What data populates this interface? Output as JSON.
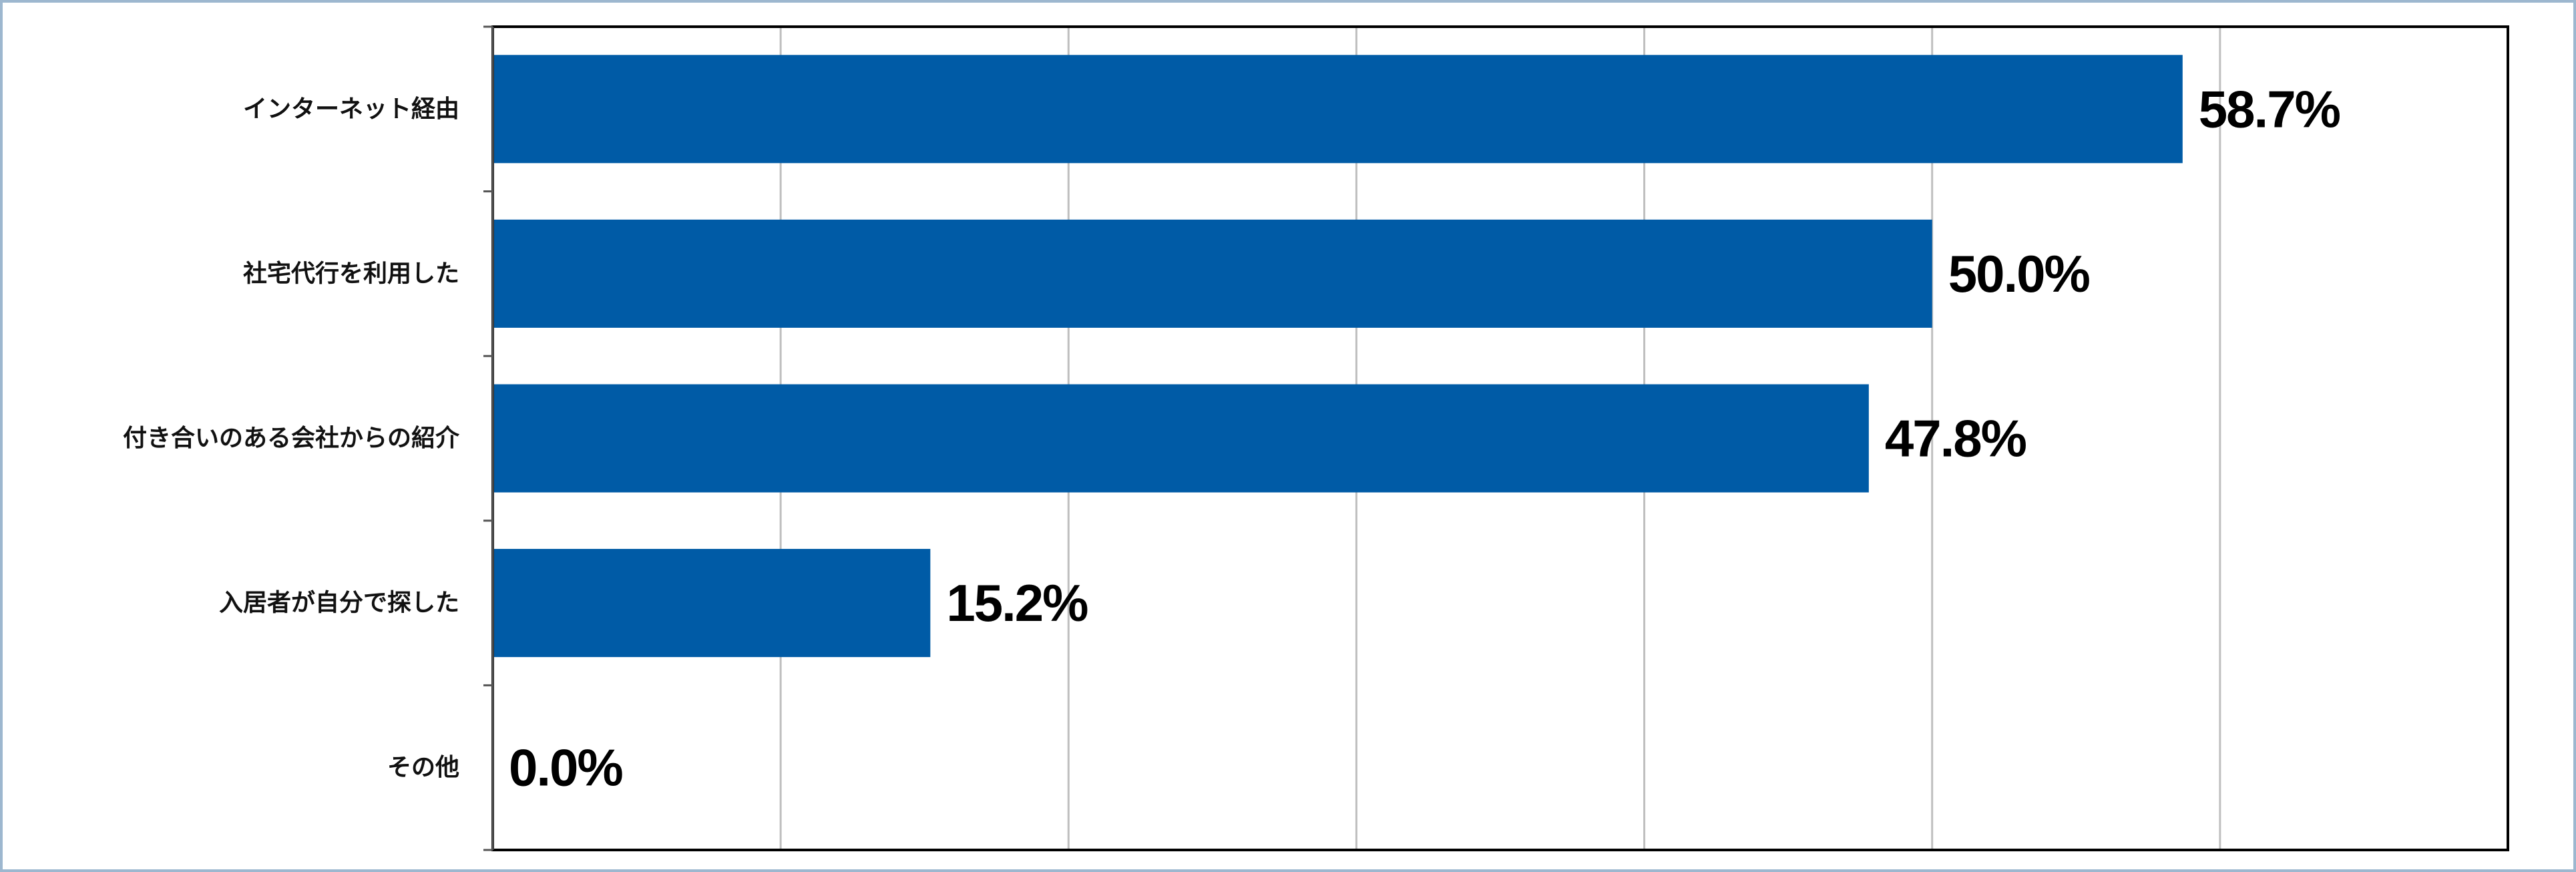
{
  "chart_data": {
    "type": "bar",
    "orientation": "horizontal",
    "categories": [
      "インターネット経由",
      "社宅代行を利用した",
      "付き合いのある会社からの紹介",
      "入居者が自分で探した",
      "その他"
    ],
    "values": [
      58.7,
      50.0,
      47.8,
      15.2,
      0.0
    ],
    "value_labels": [
      "58.7%",
      "50.0%",
      "47.8%",
      "15.2%",
      "0.0%"
    ],
    "xlim": [
      0,
      70
    ],
    "x_gridline_step": 10,
    "grid": true,
    "legend": "none",
    "colors": {
      "bar": "#005BA6",
      "gridline": "#BFBFBF",
      "frame": "#000000",
      "outer_border": "#9DB7CF"
    }
  }
}
